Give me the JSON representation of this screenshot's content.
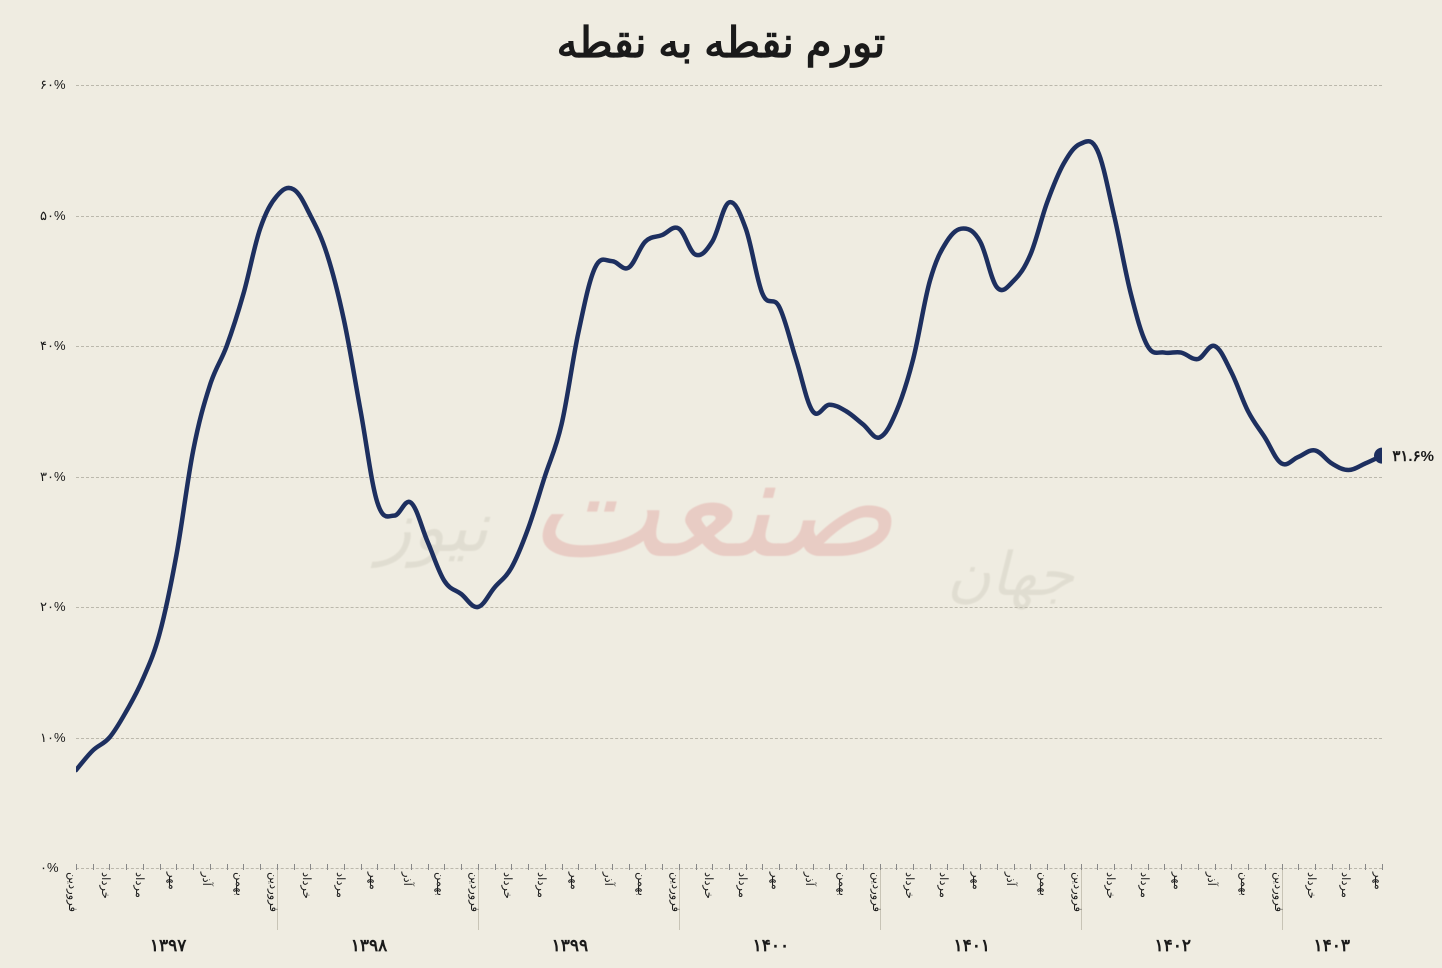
{
  "chart": {
    "type": "line",
    "title": "تورم نقطه به نقطه",
    "title_fontsize": 42,
    "background_color": "#efece1",
    "line_color": "#1d2f5f",
    "line_width": 4.5,
    "marker_color": "#1d2f5f",
    "marker_radius": 8,
    "grid_color": "#bbb8ac",
    "text_color": "#1a1a1a",
    "ylim": [
      0,
      60
    ],
    "ytick_step": 10,
    "y_ticks": [
      {
        "v": 0,
        "label": "۰%"
      },
      {
        "v": 10,
        "label": "۱۰%"
      },
      {
        "v": 20,
        "label": "۲۰%"
      },
      {
        "v": 30,
        "label": "۳۰%"
      },
      {
        "v": 40,
        "label": "۴۰%"
      },
      {
        "v": 50,
        "label": "۵۰%"
      },
      {
        "v": 60,
        "label": "۶۰%"
      }
    ],
    "end_value": 31.6,
    "end_label": "۳۱.۶%",
    "months": [
      "فروردین",
      "",
      "خرداد",
      "",
      "مرداد",
      "",
      "مهر",
      "",
      "آذر",
      "",
      "بهمن",
      ""
    ],
    "month_ticks": [
      "فروردین",
      "خرداد",
      "مرداد",
      "مهر",
      "آذر",
      "بهمن"
    ],
    "years": [
      "۱۳۹۷",
      "۱۳۹۸",
      "۱۳۹۹",
      "۱۴۰۰",
      "۱۴۰۱",
      "۱۴۰۲",
      "۱۴۰۳"
    ],
    "year_month_counts": [
      12,
      12,
      12,
      12,
      12,
      12,
      7
    ],
    "values": [
      7.5,
      9,
      10,
      12,
      14.5,
      18,
      24,
      32,
      37,
      40,
      44,
      49,
      51.5,
      52,
      50,
      47,
      42,
      35,
      28,
      27,
      28,
      25,
      22,
      21,
      20,
      21.5,
      23,
      26,
      30,
      34,
      41,
      46,
      46.5,
      46,
      48,
      48.5,
      49,
      47,
      48,
      51,
      49,
      44,
      43,
      39,
      35,
      35.5,
      35,
      34,
      33,
      35,
      39,
      45,
      48,
      49,
      48,
      44.5,
      45,
      47,
      51,
      54,
      55.5,
      55,
      50,
      44,
      40,
      39.5,
      39.5,
      39,
      40,
      38,
      35,
      33,
      31,
      31.5,
      32,
      31,
      30.5,
      31,
      31.6
    ],
    "watermark": {
      "main": "صنعت",
      "sub1": "نیوز",
      "sub2": "جهان",
      "main_color": "#d97b7b",
      "sub_color": "#bdb9aa",
      "opacity": 0.28
    }
  }
}
